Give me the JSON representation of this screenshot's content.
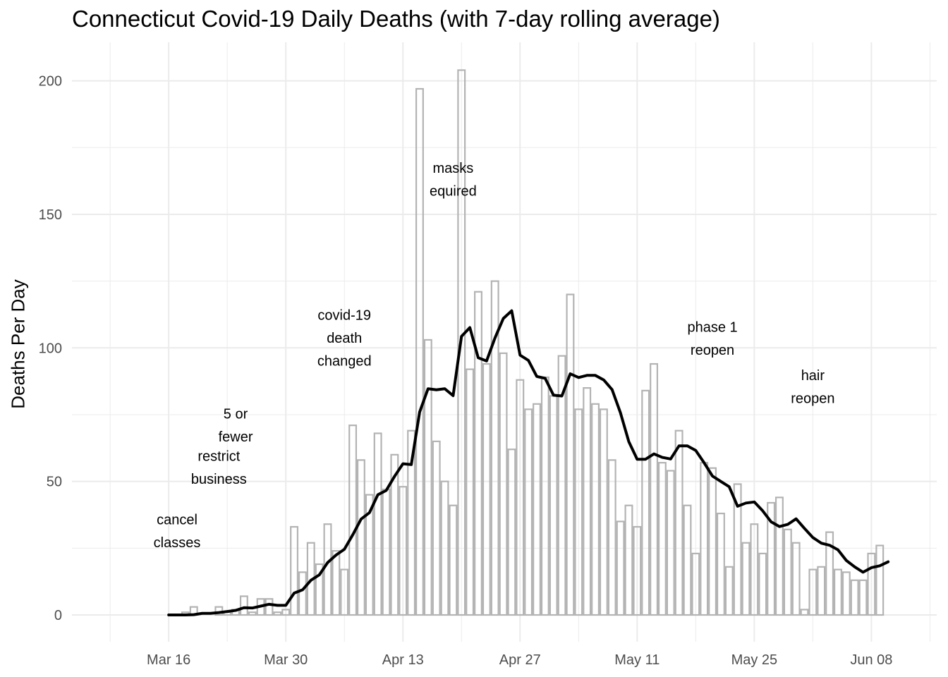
{
  "chart_data": {
    "type": "bar",
    "title": "Connecticut Covid-19 Daily Deaths (with 7-day rolling average)",
    "xlabel": "",
    "ylabel": "Deaths Per Day",
    "ylim": [
      0,
      210
    ],
    "yticks": [
      0,
      50,
      100,
      150,
      200
    ],
    "xticks": [
      {
        "label": "Mar 16",
        "date": "2020-03-16"
      },
      {
        "label": "Mar 30",
        "date": "2020-03-30"
      },
      {
        "label": "Apr 13",
        "date": "2020-04-13"
      },
      {
        "label": "Apr 27",
        "date": "2020-04-27"
      },
      {
        "label": "May 11",
        "date": "2020-05-11"
      },
      {
        "label": "May 25",
        "date": "2020-05-25"
      },
      {
        "label": "Jun 08",
        "date": "2020-06-08"
      }
    ],
    "x_start_date": "2020-03-10",
    "grid": true,
    "colors": {
      "bars": "#b3b3b3",
      "line": "#000000",
      "grid": "#ebebeb"
    },
    "series": [
      {
        "kind": "bar",
        "values": [
          0,
          0,
          0,
          0,
          0,
          0,
          0,
          0,
          1,
          3,
          0,
          0,
          3,
          1,
          2,
          7,
          1,
          6,
          6,
          1,
          2,
          33,
          16,
          27,
          19,
          34,
          24,
          17,
          71,
          58,
          45,
          68,
          47,
          60,
          48,
          69,
          197,
          103,
          65,
          50,
          41,
          204,
          92,
          121,
          94,
          125,
          98,
          62,
          88,
          77,
          79,
          89,
          82,
          97,
          120,
          77,
          85,
          79,
          77,
          58,
          35,
          41,
          33,
          84,
          94,
          57,
          54,
          69,
          41,
          23,
          57,
          55,
          38,
          18,
          49,
          27,
          34,
          23,
          42,
          44,
          32,
          27,
          2,
          17,
          18,
          31,
          17,
          16,
          13,
          13,
          23,
          26
        ]
      },
      {
        "kind": "line",
        "start_index": 6,
        "values": [
          0,
          0,
          0,
          0.1,
          0.6,
          0.6,
          0.9,
          1.3,
          1.7,
          2.7,
          2.6,
          3.3,
          4.0,
          3.6,
          3.6,
          8.2,
          9.4,
          13.0,
          15.0,
          19.6,
          22.4,
          24.6,
          30.0,
          35.9,
          38.3,
          45.0,
          46.6,
          51.9,
          56.6,
          56.3,
          76.0,
          84.7,
          84.3,
          84.7,
          82.1,
          104.3,
          107.6,
          96.3,
          95.1,
          103.7,
          111.0,
          113.9,
          97.3,
          95.3,
          89.3,
          88.6,
          82.3,
          82.0,
          90.3,
          88.9,
          89.7,
          89.7,
          88.0,
          84.4,
          75.7,
          64.9,
          58.3,
          58.3,
          60.3,
          59.0,
          58.4,
          63.3,
          63.3,
          61.6,
          57.0,
          52.0,
          50.0,
          48.0,
          40.7,
          41.9,
          42.3,
          39.0,
          34.9,
          33.1,
          33.9,
          36.0,
          32.4,
          29.0,
          26.9,
          26.1,
          24.4,
          20.4,
          18.0,
          16.0,
          17.7,
          18.4,
          19.9
        ]
      }
    ],
    "annotations": [
      {
        "lines": [
          "cancel",
          "classes"
        ],
        "date": "2020-03-17",
        "y_top": 39.5
      },
      {
        "lines": [
          "restrict",
          "business"
        ],
        "date": "2020-03-22",
        "y_top": 63.2
      },
      {
        "lines": [
          "5 or",
          "fewer"
        ],
        "date": "2020-03-24",
        "y_top": 79.1
      },
      {
        "lines": [
          "covid-19",
          "death",
          "changed"
        ],
        "date": "2020-04-06",
        "y_top": 116.1
      },
      {
        "lines": [
          "masks",
          "equired"
        ],
        "date": "2020-04-19",
        "y_top": 171.1
      },
      {
        "lines": [
          "phase 1",
          "reopen"
        ],
        "date": "2020-05-20",
        "y_top": 111.5
      },
      {
        "lines": [
          "hair",
          "reopen"
        ],
        "date": "2020-06-01",
        "y_top": 93.5
      }
    ]
  }
}
